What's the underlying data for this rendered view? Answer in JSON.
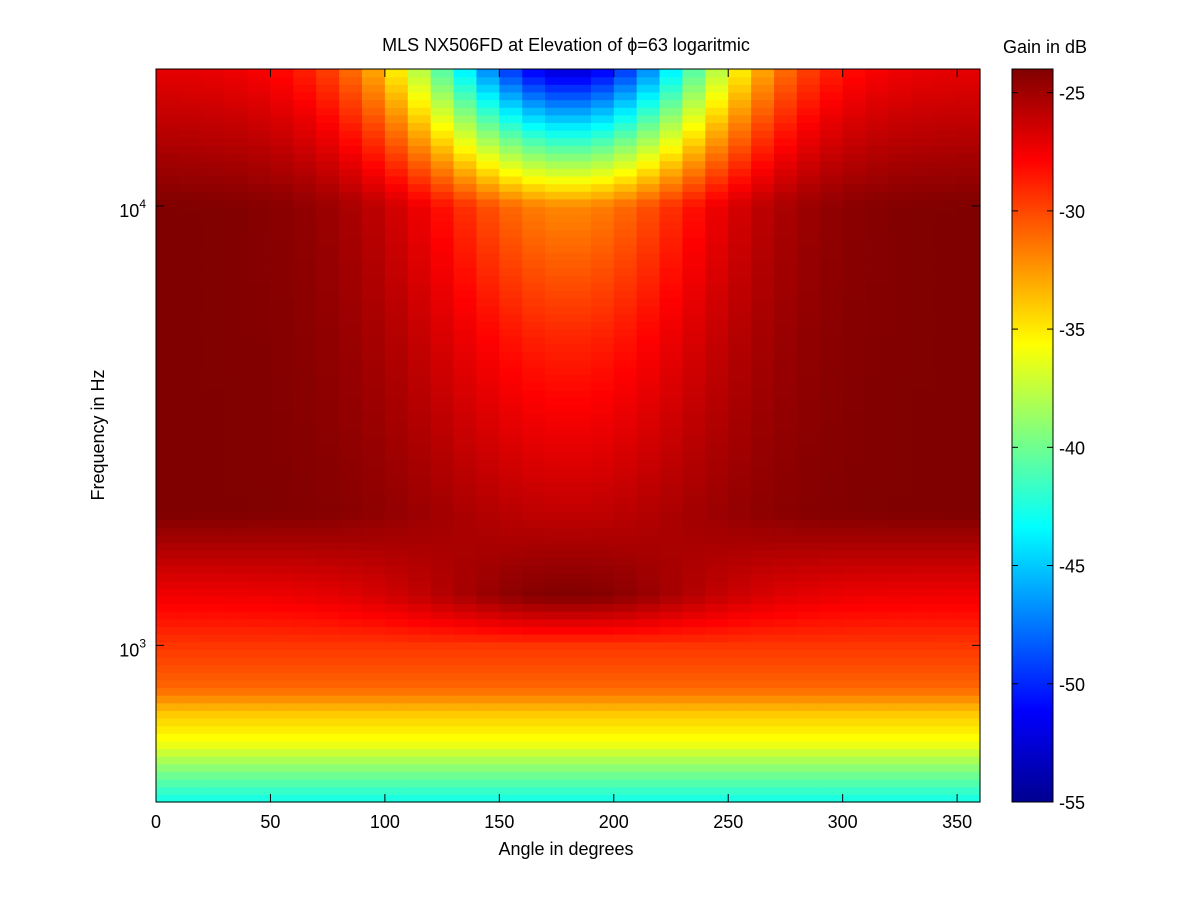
{
  "chart_data": {
    "type": "heatmap",
    "title": "MLS NX506FD at Elevation of ϕ=63 logaritmic",
    "xlabel": "Angle in degrees",
    "ylabel": "Frequency in Hz",
    "xlim": [
      0,
      360
    ],
    "x_ticks": [
      0,
      50,
      100,
      150,
      200,
      250,
      300,
      350
    ],
    "y_scale": "log",
    "ylim": [
      440,
      20500
    ],
    "y_ticks": [
      {
        "value": 1000,
        "base": "10",
        "exp": "3"
      },
      {
        "value": 10000,
        "base": "10",
        "exp": "4"
      }
    ],
    "colormap": "jet",
    "colorbar": {
      "label": "Gain in dB",
      "range": [
        -55,
        -24
      ],
      "ticks": [
        -25,
        -30,
        -35,
        -40,
        -45,
        -50,
        -55
      ]
    },
    "angle_step_deg": 10,
    "frequency_bands": [
      {
        "hz": 450,
        "db_by_angle": "uniform",
        "db": -42.5
      },
      {
        "hz": 520,
        "db_by_angle": "uniform",
        "db": -39.5
      },
      {
        "hz": 600,
        "db_by_angle": "uniform",
        "db": -36
      },
      {
        "hz": 700,
        "db_by_angle": "uniform",
        "db": -34
      },
      {
        "hz": 800,
        "db_by_angle": "uniform",
        "db": -31
      },
      {
        "hz": 1000,
        "db_by_angle": "uniform",
        "db": -29.5
      },
      {
        "hz": 1300,
        "db_by_angle": "edges_vs_center",
        "db_edges": -27.5,
        "db_center": -24
      },
      {
        "hz": 2000,
        "db_by_angle": "edges_vs_center",
        "db_edges": -24,
        "db_center": -26
      },
      {
        "hz": 5000,
        "db_by_angle": "edges_vs_center",
        "db_edges": -24,
        "db_center": -29
      },
      {
        "hz": 10000,
        "db_by_angle": "edges_vs_center",
        "db_edges": -24,
        "db_center": -32
      },
      {
        "hz": 20000,
        "db_by_angle": "edges_vs_center",
        "db_edges": -27,
        "db_center": -52
      }
    ],
    "grid": false
  }
}
